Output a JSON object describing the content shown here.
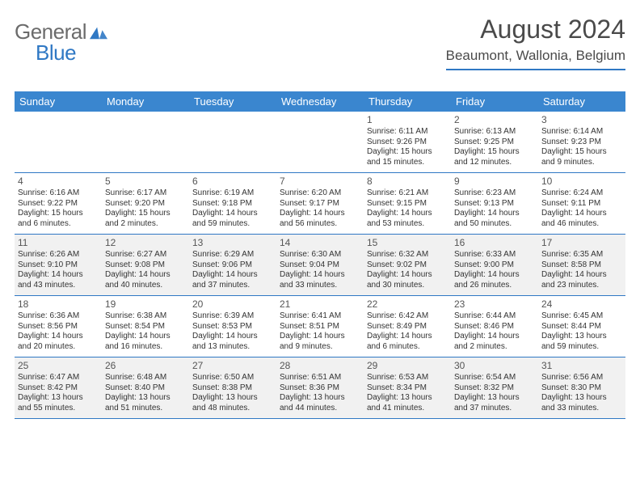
{
  "logo": {
    "general": "General",
    "blue": "Blue"
  },
  "title": "August 2024",
  "location": "Beaumont, Wallonia, Belgium",
  "colors": {
    "accent": "#3a86cf",
    "rule": "#2f78c4",
    "shade": "#f1f1f1",
    "text": "#333333"
  },
  "weekdays": [
    "Sunday",
    "Monday",
    "Tuesday",
    "Wednesday",
    "Thursday",
    "Friday",
    "Saturday"
  ],
  "weeks": [
    [
      null,
      null,
      null,
      null,
      {
        "n": "1",
        "sr": "Sunrise: 6:11 AM",
        "ss": "Sunset: 9:26 PM",
        "dl": "Daylight: 15 hours and 15 minutes."
      },
      {
        "n": "2",
        "sr": "Sunrise: 6:13 AM",
        "ss": "Sunset: 9:25 PM",
        "dl": "Daylight: 15 hours and 12 minutes."
      },
      {
        "n": "3",
        "sr": "Sunrise: 6:14 AM",
        "ss": "Sunset: 9:23 PM",
        "dl": "Daylight: 15 hours and 9 minutes."
      }
    ],
    [
      {
        "n": "4",
        "sr": "Sunrise: 6:16 AM",
        "ss": "Sunset: 9:22 PM",
        "dl": "Daylight: 15 hours and 6 minutes."
      },
      {
        "n": "5",
        "sr": "Sunrise: 6:17 AM",
        "ss": "Sunset: 9:20 PM",
        "dl": "Daylight: 15 hours and 2 minutes."
      },
      {
        "n": "6",
        "sr": "Sunrise: 6:19 AM",
        "ss": "Sunset: 9:18 PM",
        "dl": "Daylight: 14 hours and 59 minutes."
      },
      {
        "n": "7",
        "sr": "Sunrise: 6:20 AM",
        "ss": "Sunset: 9:17 PM",
        "dl": "Daylight: 14 hours and 56 minutes."
      },
      {
        "n": "8",
        "sr": "Sunrise: 6:21 AM",
        "ss": "Sunset: 9:15 PM",
        "dl": "Daylight: 14 hours and 53 minutes."
      },
      {
        "n": "9",
        "sr": "Sunrise: 6:23 AM",
        "ss": "Sunset: 9:13 PM",
        "dl": "Daylight: 14 hours and 50 minutes."
      },
      {
        "n": "10",
        "sr": "Sunrise: 6:24 AM",
        "ss": "Sunset: 9:11 PM",
        "dl": "Daylight: 14 hours and 46 minutes."
      }
    ],
    [
      {
        "n": "11",
        "sr": "Sunrise: 6:26 AM",
        "ss": "Sunset: 9:10 PM",
        "dl": "Daylight: 14 hours and 43 minutes."
      },
      {
        "n": "12",
        "sr": "Sunrise: 6:27 AM",
        "ss": "Sunset: 9:08 PM",
        "dl": "Daylight: 14 hours and 40 minutes."
      },
      {
        "n": "13",
        "sr": "Sunrise: 6:29 AM",
        "ss": "Sunset: 9:06 PM",
        "dl": "Daylight: 14 hours and 37 minutes."
      },
      {
        "n": "14",
        "sr": "Sunrise: 6:30 AM",
        "ss": "Sunset: 9:04 PM",
        "dl": "Daylight: 14 hours and 33 minutes."
      },
      {
        "n": "15",
        "sr": "Sunrise: 6:32 AM",
        "ss": "Sunset: 9:02 PM",
        "dl": "Daylight: 14 hours and 30 minutes."
      },
      {
        "n": "16",
        "sr": "Sunrise: 6:33 AM",
        "ss": "Sunset: 9:00 PM",
        "dl": "Daylight: 14 hours and 26 minutes."
      },
      {
        "n": "17",
        "sr": "Sunrise: 6:35 AM",
        "ss": "Sunset: 8:58 PM",
        "dl": "Daylight: 14 hours and 23 minutes."
      }
    ],
    [
      {
        "n": "18",
        "sr": "Sunrise: 6:36 AM",
        "ss": "Sunset: 8:56 PM",
        "dl": "Daylight: 14 hours and 20 minutes."
      },
      {
        "n": "19",
        "sr": "Sunrise: 6:38 AM",
        "ss": "Sunset: 8:54 PM",
        "dl": "Daylight: 14 hours and 16 minutes."
      },
      {
        "n": "20",
        "sr": "Sunrise: 6:39 AM",
        "ss": "Sunset: 8:53 PM",
        "dl": "Daylight: 14 hours and 13 minutes."
      },
      {
        "n": "21",
        "sr": "Sunrise: 6:41 AM",
        "ss": "Sunset: 8:51 PM",
        "dl": "Daylight: 14 hours and 9 minutes."
      },
      {
        "n": "22",
        "sr": "Sunrise: 6:42 AM",
        "ss": "Sunset: 8:49 PM",
        "dl": "Daylight: 14 hours and 6 minutes."
      },
      {
        "n": "23",
        "sr": "Sunrise: 6:44 AM",
        "ss": "Sunset: 8:46 PM",
        "dl": "Daylight: 14 hours and 2 minutes."
      },
      {
        "n": "24",
        "sr": "Sunrise: 6:45 AM",
        "ss": "Sunset: 8:44 PM",
        "dl": "Daylight: 13 hours and 59 minutes."
      }
    ],
    [
      {
        "n": "25",
        "sr": "Sunrise: 6:47 AM",
        "ss": "Sunset: 8:42 PM",
        "dl": "Daylight: 13 hours and 55 minutes."
      },
      {
        "n": "26",
        "sr": "Sunrise: 6:48 AM",
        "ss": "Sunset: 8:40 PM",
        "dl": "Daylight: 13 hours and 51 minutes."
      },
      {
        "n": "27",
        "sr": "Sunrise: 6:50 AM",
        "ss": "Sunset: 8:38 PM",
        "dl": "Daylight: 13 hours and 48 minutes."
      },
      {
        "n": "28",
        "sr": "Sunrise: 6:51 AM",
        "ss": "Sunset: 8:36 PM",
        "dl": "Daylight: 13 hours and 44 minutes."
      },
      {
        "n": "29",
        "sr": "Sunrise: 6:53 AM",
        "ss": "Sunset: 8:34 PM",
        "dl": "Daylight: 13 hours and 41 minutes."
      },
      {
        "n": "30",
        "sr": "Sunrise: 6:54 AM",
        "ss": "Sunset: 8:32 PM",
        "dl": "Daylight: 13 hours and 37 minutes."
      },
      {
        "n": "31",
        "sr": "Sunrise: 6:56 AM",
        "ss": "Sunset: 8:30 PM",
        "dl": "Daylight: 13 hours and 33 minutes."
      }
    ]
  ],
  "shaded_weeks": [
    2,
    4
  ]
}
